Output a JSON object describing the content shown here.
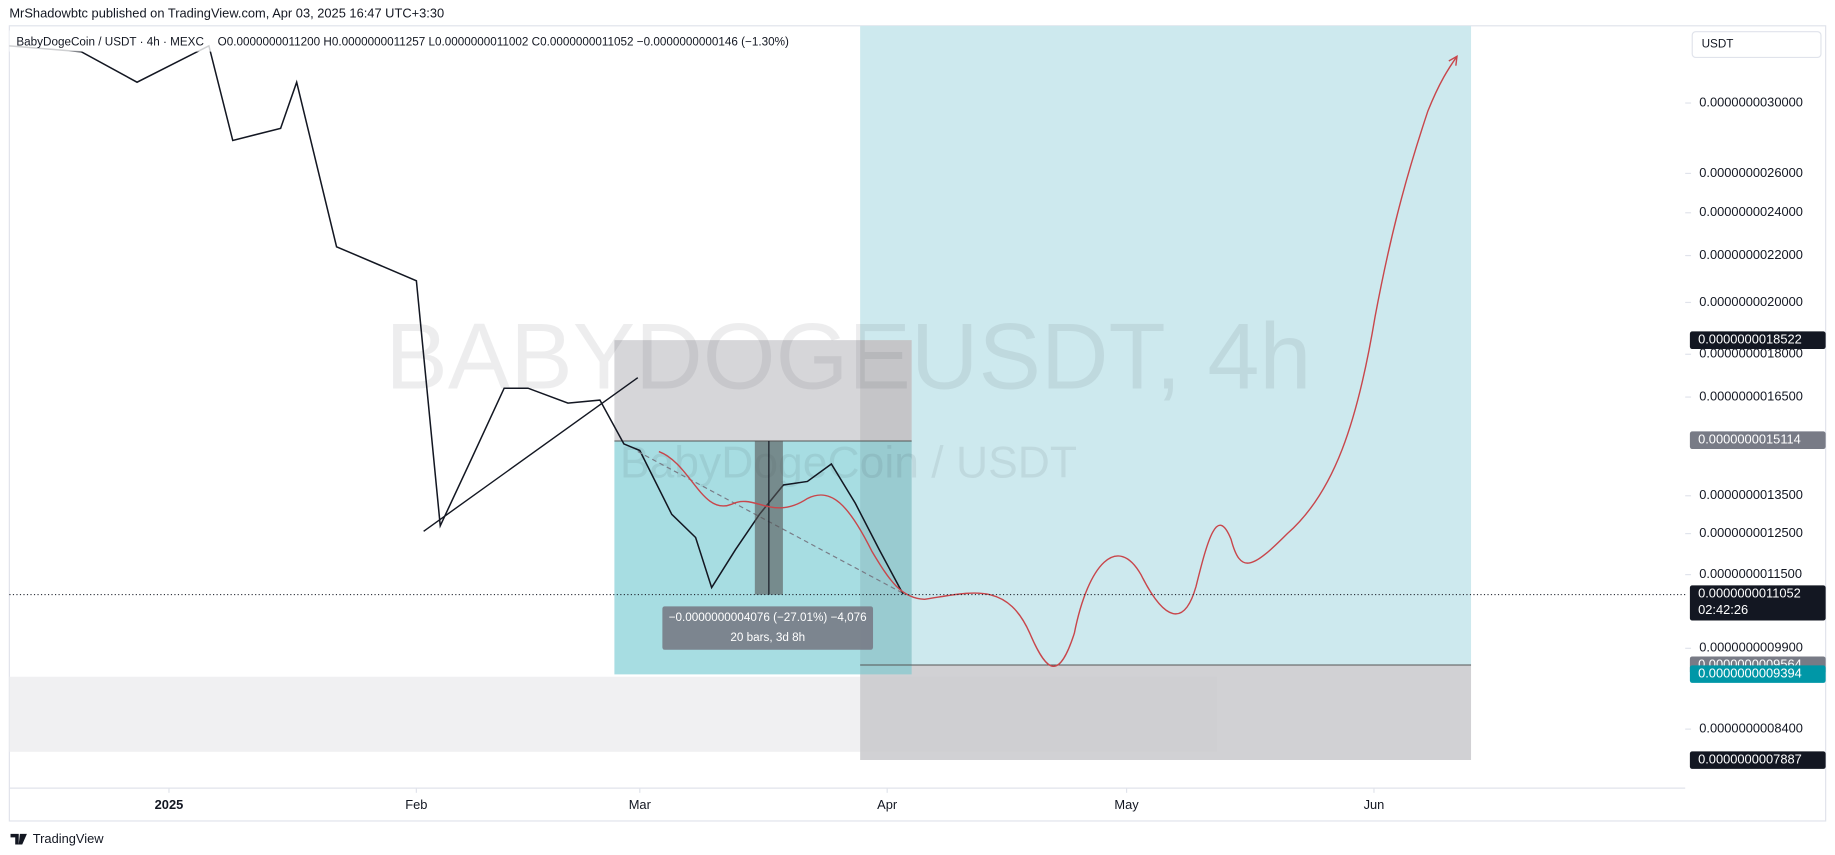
{
  "header": {
    "published": "MrShadowbtc published on TradingView.com, Apr 03, 2025 16:47 UTC+3:30",
    "brand": "TradingView",
    "currency": "USDT"
  },
  "chart_data": {
    "type": "line",
    "title": "BabyDogeCoin / USDT · 4h · MEXC",
    "ohlc": "O0.0000000011200 H0.0000000011257 L0.0000000011002 C0.0000000011052 −0.0000000000146 (−1.30%)",
    "watermark": "BABYDOGEUSDT, 4h",
    "watermark_sub": "BabyDogeCoin / USDT",
    "measure": {
      "line1": "−0.0000000004076 (−27.01%) −4,076",
      "line2": "20 bars, 3d 8h"
    },
    "color": "#131722",
    "log_scale": true,
    "x": [
      "2024-12-12",
      "2024-12-21",
      "2024-12-28",
      "2025-01-06",
      "2025-01-09",
      "2025-01-15",
      "2025-01-17",
      "2025-01-22",
      "2025-02-01",
      "2025-02-04",
      "2025-02-08",
      "2025-02-12",
      "2025-02-15",
      "2025-02-20",
      "2025-02-24",
      "2025-02-27",
      "2025-03-01",
      "2025-03-05",
      "2025-03-08",
      "2025-03-10",
      "2025-03-13",
      "2025-03-16",
      "2025-03-19",
      "2025-03-22",
      "2025-03-25",
      "2025-03-28",
      "2025-03-31",
      "2025-04-03"
    ],
    "values": [
      3.37e-09,
      3.33e-09,
      3.13e-09,
      3.37e-09,
      2.78e-09,
      2.85e-09,
      3.13e-09,
      2.24e-09,
      2.09e-09,
      1.27e-09,
      1.46e-09,
      1.68e-09,
      1.68e-09,
      1.63e-09,
      1.64e-09,
      1.5e-09,
      1.48e-09,
      1.3e-09,
      1.24e-09,
      1.12e-09,
      1.21e-09,
      1.3e-09,
      1.38e-09,
      1.39e-09,
      1.44e-09,
      1.33e-09,
      1.21e-09,
      1.1052e-09
    ],
    "xlim": [
      "2024-12-12",
      "2025-07-10"
    ],
    "xticks": [
      {
        "value": "2025-01-01",
        "label": "2025"
      },
      {
        "value": "2025-02-01",
        "label": "Feb"
      },
      {
        "value": "2025-03-01",
        "label": "Mar"
      },
      {
        "value": "2025-04-01",
        "label": "Apr"
      },
      {
        "value": "2025-05-01",
        "label": "May"
      },
      {
        "value": "2025-06-01",
        "label": "Jun"
      }
    ],
    "ylim": [
      7.45e-10,
      3.51e-09
    ],
    "yticks": [
      {
        "value": 3e-09,
        "label": "0.0000000030000"
      },
      {
        "value": 2.6e-09,
        "label": "0.0000000026000"
      },
      {
        "value": 2.4e-09,
        "label": "0.0000000024000"
      },
      {
        "value": 2.2e-09,
        "label": "0.0000000022000"
      },
      {
        "value": 2e-09,
        "label": "0.0000000020000"
      },
      {
        "value": 1.8e-09,
        "label": "0.0000000018000"
      },
      {
        "value": 1.65e-09,
        "label": "0.0000000016500"
      },
      {
        "value": 1.35e-09,
        "label": "0.0000000013500"
      },
      {
        "value": 1.25e-09,
        "label": "0.0000000012500"
      },
      {
        "value": 1.15e-09,
        "label": "0.0000000011500"
      },
      {
        "value": 9.9e-10,
        "label": "0.0000000009900"
      },
      {
        "value": 8.4e-10,
        "label": "0.0000000008400"
      }
    ],
    "price_labels": [
      {
        "value": 1.8522e-09,
        "label": "0.0000000018522",
        "color": "#131722"
      },
      {
        "value": 1.5114e-09,
        "label": "0.0000000015114",
        "color": "#787b86"
      },
      {
        "value": 1.1052e-09,
        "label": "0.0000000011052",
        "color": "#131722",
        "countdown": "02:42:26"
      },
      {
        "value": 9.564e-10,
        "label": "0.0000000009564",
        "color": "#787b86"
      },
      {
        "value": 9.394e-10,
        "label": "0.0000000009394",
        "color": "#0097a7"
      },
      {
        "value": 7.887e-10,
        "label": "0.0000000007887",
        "color": "#131722"
      }
    ]
  }
}
